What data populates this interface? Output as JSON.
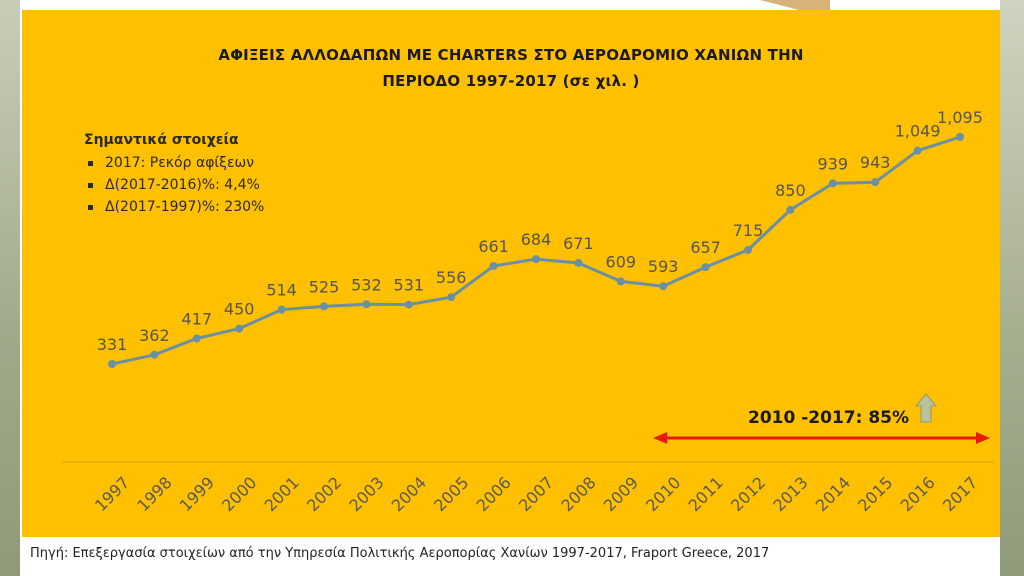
{
  "chart_data": {
    "type": "line",
    "title_line1": "ΑΦΙΞΕΙΣ ΑΛΛΟΔΑΠΩΝ ΜΕ CHARTERS ΣΤΟ ΑΕΡΟΔΡΟΜΙΟ ΧΑΝΙΩΝ ΤΗΝ",
    "title_line2": "ΠΕΡΙΟΔΟ 1997-2017 (σε χιλ. )",
    "x": [
      "1997",
      "1998",
      "1999",
      "2000",
      "2001",
      "2002",
      "2003",
      "2004",
      "2005",
      "2006",
      "2007",
      "2008",
      "2009",
      "2010",
      "2011",
      "2012",
      "2013",
      "2014",
      "2015",
      "2016",
      "2017"
    ],
    "values": [
      331,
      362,
      417,
      450,
      514,
      525,
      532,
      531,
      556,
      661,
      684,
      671,
      609,
      593,
      657,
      715,
      850,
      939,
      943,
      1049,
      1095
    ],
    "data_labels": [
      "331",
      "362",
      "417",
      "450",
      "514",
      "525",
      "532",
      "531",
      "556",
      "661",
      "684",
      "671",
      "609",
      "593",
      "657",
      "715",
      "850",
      "939",
      "943",
      "1,049",
      "1,095"
    ],
    "series_color": "#6b8fa5",
    "grid": false,
    "legend": "none",
    "notes": {
      "heading": "Σημαντικά στοιχεία",
      "items": [
        "2017: Ρεκόρ αφίξεων",
        "Δ(2017-2016)%: 4,4%",
        "Δ(2017-1997)%: 230%"
      ]
    },
    "annotation": {
      "text": "2010 -2017: 85%",
      "arrow_color": "#e8190f",
      "up_arrow_color": "#b9c39a",
      "from": "2010",
      "to": "2017"
    },
    "background_color": "#ffc000"
  },
  "source": "Πηγή: Επεξεργασία στοιχείων από την Υπηρεσία Πολιτικής Αεροπορίας Χανίων 1997-2017, Fraport Greece, 2017"
}
